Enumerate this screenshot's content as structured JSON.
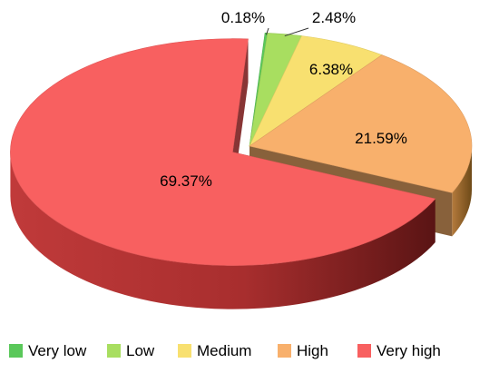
{
  "chart_data": {
    "type": "pie",
    "title": "",
    "categories": [
      "Very low",
      "Low",
      "Medium",
      "High",
      "Very high"
    ],
    "values": [
      0.18,
      2.48,
      6.38,
      21.59,
      69.37
    ],
    "data_labels": [
      "0.18%",
      "2.48%",
      "6.38%",
      "21.59%",
      "69.37%"
    ],
    "colors": {
      "Very low": "#5ac85a",
      "Low": "#a8de60",
      "Medium": "#f8e070",
      "High": "#f8b06c",
      "Very high": "#f86060"
    },
    "style": "3d-exploded",
    "legend": {
      "placement": "bottom",
      "items": [
        {
          "name": "Very low",
          "color": "#5ac85a"
        },
        {
          "name": "Low",
          "color": "#a8de60"
        },
        {
          "name": "Medium",
          "color": "#f8e070"
        },
        {
          "name": "High",
          "color": "#f8b06c"
        },
        {
          "name": "Very high",
          "color": "#f86060"
        }
      ]
    }
  }
}
